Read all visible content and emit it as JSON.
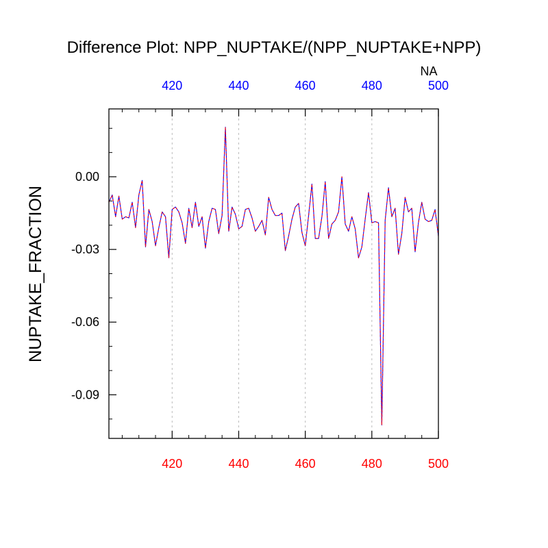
{
  "colors": {
    "bottom_axis": "#ff0000",
    "top_axis": "#0000ff",
    "series_primary": "#0000ff",
    "series_secondary": "#ff0000",
    "grid": "#bbbbbb",
    "frame": "#000000"
  },
  "chart_data": {
    "type": "line",
    "title": "Difference Plot: NPP_NUPTAKE/(NPP_NUPTAKE+NPP)",
    "ylabel": "NUPTAKE_FRACTION",
    "top_axis_title": "NA",
    "xlim": [
      401,
      500
    ],
    "ylim": [
      -0.108,
      0.028
    ],
    "x_ticks": [
      420,
      440,
      460,
      480,
      500
    ],
    "x_tick_labels": [
      "420",
      "440",
      "460",
      "480",
      "500"
    ],
    "y_ticks": [
      0.0,
      -0.03,
      -0.06,
      -0.09
    ],
    "y_tick_labels": [
      "0.00",
      "-0.03",
      "-0.06",
      "-0.09"
    ],
    "grid": "vertical dashed at x ticks",
    "x_start": 401,
    "x_step": 1,
    "series": [
      {
        "values": [
          -0.0105,
          -0.0075,
          -0.0165,
          -0.008,
          -0.0175,
          -0.0165,
          -0.017,
          -0.0105,
          -0.021,
          -0.0075,
          -0.0015,
          -0.029,
          -0.0135,
          -0.0185,
          -0.0285,
          -0.021,
          -0.0145,
          -0.0165,
          -0.0335,
          -0.0135,
          -0.0125,
          -0.0145,
          -0.019,
          -0.0275,
          -0.013,
          -0.021,
          -0.0105,
          -0.0205,
          -0.0165,
          -0.0295,
          -0.0185,
          -0.013,
          -0.0135,
          -0.0235,
          -0.016,
          0.0205,
          -0.0225,
          -0.0125,
          -0.0155,
          -0.0215,
          -0.0205,
          -0.0135,
          -0.013,
          -0.017,
          -0.0225,
          -0.0205,
          -0.018,
          -0.024,
          -0.0085,
          -0.0135,
          -0.016,
          -0.016,
          -0.015,
          -0.0305,
          -0.0245,
          -0.0175,
          -0.0125,
          -0.011,
          -0.023,
          -0.0285,
          -0.016,
          -0.003,
          -0.0255,
          -0.0255,
          -0.0165,
          -0.002,
          -0.0255,
          -0.0195,
          -0.018,
          -0.0145,
          0.0,
          -0.0195,
          -0.0225,
          -0.0165,
          -0.0215,
          -0.0335,
          -0.029,
          -0.0175,
          -0.0065,
          -0.019,
          -0.0185,
          -0.019,
          -0.1025,
          -0.018,
          -0.0045,
          -0.0165,
          -0.013,
          -0.032,
          -0.0235,
          -0.0085,
          -0.0145,
          -0.013,
          -0.031,
          -0.019,
          -0.0105,
          -0.0175,
          -0.0185,
          -0.018,
          -0.0135,
          -0.0245
        ]
      }
    ]
  }
}
